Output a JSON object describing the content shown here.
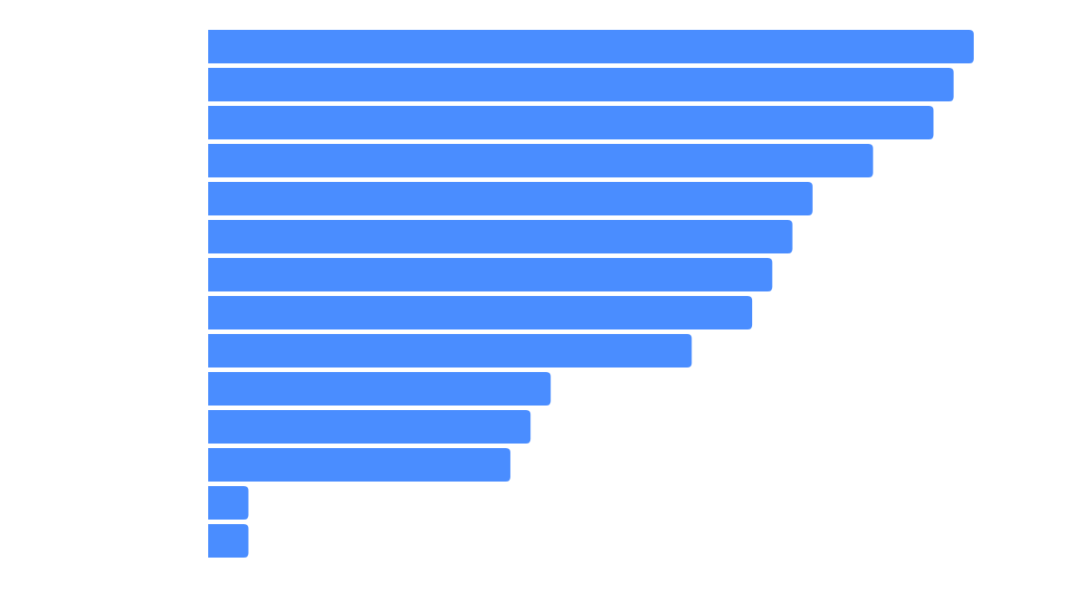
{
  "chart_data": {
    "type": "bar",
    "orientation": "horizontal",
    "title": "",
    "xlabel": "",
    "ylabel": "",
    "values": [
      38,
      37,
      36,
      33,
      30,
      29,
      28,
      27,
      24,
      17,
      16,
      15,
      2,
      2
    ],
    "xlim": [
      0,
      38
    ],
    "grid": false,
    "legend": "none",
    "colors": {
      "bar": "#4a8dff",
      "background": "#ffffff"
    }
  }
}
